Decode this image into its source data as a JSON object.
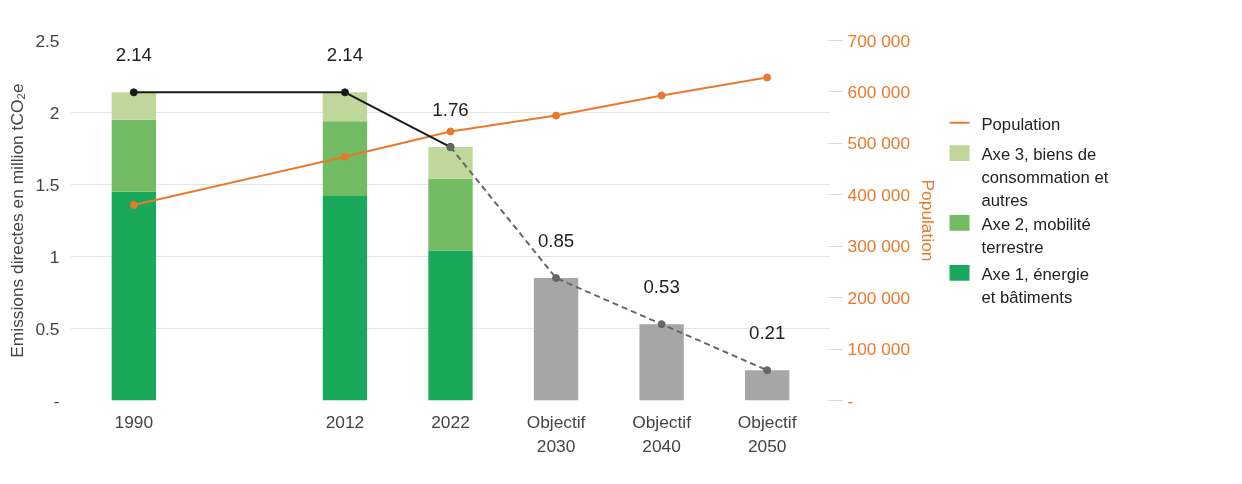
{
  "chart_data": {
    "type": "bar",
    "stacked": true,
    "ylabel": "Emissions directes en million tCO₂e",
    "y2label": "Population",
    "categories": [
      "1990",
      null,
      "2012",
      "2022",
      "Objectif 2030",
      "Objectif 2040",
      "Objectif 2050"
    ],
    "ylim": [
      0,
      2.5
    ],
    "yticks": [
      {
        "value": 0,
        "label": "-"
      },
      0.5,
      1,
      1.5,
      2,
      2.5
    ],
    "y2lim": [
      0,
      700000
    ],
    "y2ticks": [
      {
        "value": 0,
        "label": "-"
      },
      {
        "value": 100000,
        "label": "100 000"
      },
      {
        "value": 200000,
        "label": "200 000"
      },
      {
        "value": 300000,
        "label": "300 000"
      },
      {
        "value": 400000,
        "label": "400 000"
      },
      {
        "value": 500000,
        "label": "500 000"
      },
      {
        "value": 600000,
        "label": "600 000"
      },
      {
        "value": 700000,
        "label": "700 000"
      }
    ],
    "grid": "y",
    "legend": "right",
    "series": [
      {
        "name": "Axe 1, énergie et bâtiments",
        "color": "#1aa85a",
        "values": [
          1.45,
          null,
          1.42,
          1.04,
          null,
          null,
          null
        ]
      },
      {
        "name": "Axe 2, mobilité terrestre",
        "color": "#72bb63",
        "values": [
          0.5,
          null,
          0.52,
          0.5,
          null,
          null,
          null
        ]
      },
      {
        "name": "Axe 3, biens de consommation et autres",
        "color": "#bfd79a",
        "values": [
          0.19,
          null,
          0.2,
          0.22,
          null,
          null,
          null
        ]
      },
      {
        "color": "#a6a6a6",
        "values": [
          null,
          null,
          null,
          null,
          0.85,
          0.53,
          0.21
        ]
      },
      {
        "name": "Population",
        "type": "line",
        "axis": "y2",
        "color": "#e87a2c",
        "marker": "circle",
        "line_style": "solid",
        "values": [
          380000,
          null,
          474000,
          523000,
          554000,
          593000,
          628000
        ]
      },
      {
        "type": "line",
        "color": "#1a1a1a",
        "marker": "circle",
        "line_style": "solid",
        "values": [
          2.14,
          null,
          2.14,
          1.76,
          null,
          null,
          null
        ],
        "value_labels": [
          "2.14",
          null,
          "2.14",
          "1.76",
          null,
          null,
          null
        ]
      },
      {
        "type": "line",
        "color": "#666666",
        "marker": "circle",
        "line_style": "dashed",
        "values": [
          null,
          null,
          null,
          1.76,
          0.85,
          0.53,
          0.21
        ],
        "value_labels": [
          null,
          null,
          null,
          null,
          "0.85",
          "0.53",
          "0.21"
        ]
      }
    ]
  }
}
